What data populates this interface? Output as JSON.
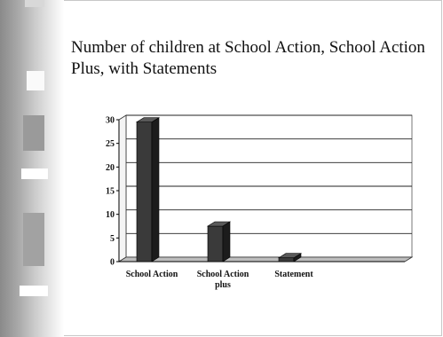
{
  "slide": {
    "title": "Number of children at School Action, School Action Plus, with Statements"
  },
  "chart_data": {
    "type": "bar",
    "title": "",
    "xlabel": "",
    "ylabel": "",
    "categories": [
      "School Action",
      "School Action plus",
      "Statement"
    ],
    "category_label_lines": [
      [
        "School Action"
      ],
      [
        "School Action",
        "plus"
      ],
      [
        "Statement"
      ]
    ],
    "values": [
      29.5,
      7.5,
      0.8
    ],
    "ylim": [
      0,
      30
    ],
    "yticks": [
      0,
      5,
      10,
      15,
      20,
      25,
      30
    ],
    "grid": true,
    "legend": "none",
    "bar_color": "#3a3a3a",
    "bar_side_color": "#1c1c1c",
    "bar_top_color": "#5a5a5a"
  }
}
